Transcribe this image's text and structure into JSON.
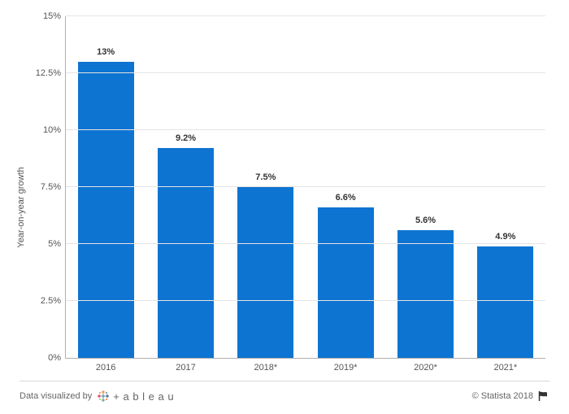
{
  "chart": {
    "type": "bar",
    "ylabel": "Year-on-year growth",
    "categories": [
      "2016",
      "2017",
      "2018*",
      "2019*",
      "2020*",
      "2021*"
    ],
    "values": [
      13,
      9.2,
      7.5,
      6.6,
      5.6,
      4.9
    ],
    "value_labels": [
      "13%",
      "9.2%",
      "7.5%",
      "6.6%",
      "5.6%",
      "4.9%"
    ],
    "bar_color": "#0e74d1",
    "ylim": [
      0,
      15
    ],
    "ytick_step": 2.5,
    "ytick_labels": [
      "0%",
      "2.5%",
      "5%",
      "7.5%",
      "10%",
      "12.5%",
      "15%"
    ],
    "grid_color": "#e4e4e4",
    "axis_color": "#b0b0b0",
    "background_color": "#ffffff",
    "bar_width": 0.7,
    "label_fontsize": 11,
    "tick_fontsize": 11
  },
  "footer": {
    "visualized_by": "Data visualized by",
    "tool_name": "+ a b l e a u",
    "copyright": "© Statista 2018"
  }
}
